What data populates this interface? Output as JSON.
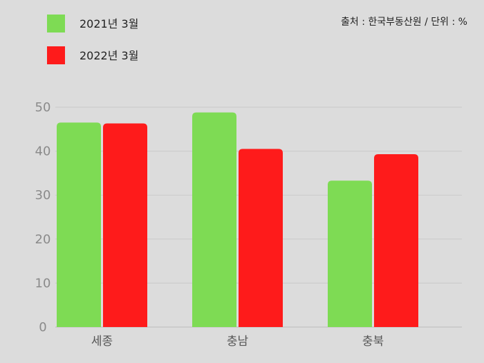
{
  "source_note": "출처 : 한국부동산원 / 단위 : %",
  "chart_data": {
    "type": "bar",
    "categories": [
      "세종",
      "충남",
      "충북"
    ],
    "series": [
      {
        "name": "2021년 3월",
        "values": [
          46.5,
          48.8,
          33.3
        ],
        "color": "#7edb54"
      },
      {
        "name": "2022년 3월",
        "values": [
          46.3,
          40.5,
          39.3
        ],
        "color": "#fe1b1b"
      }
    ],
    "ylim": [
      0,
      50
    ],
    "yticks": [
      0,
      10,
      20,
      30,
      40,
      50
    ],
    "grid": true,
    "legend_position": "top-left"
  }
}
